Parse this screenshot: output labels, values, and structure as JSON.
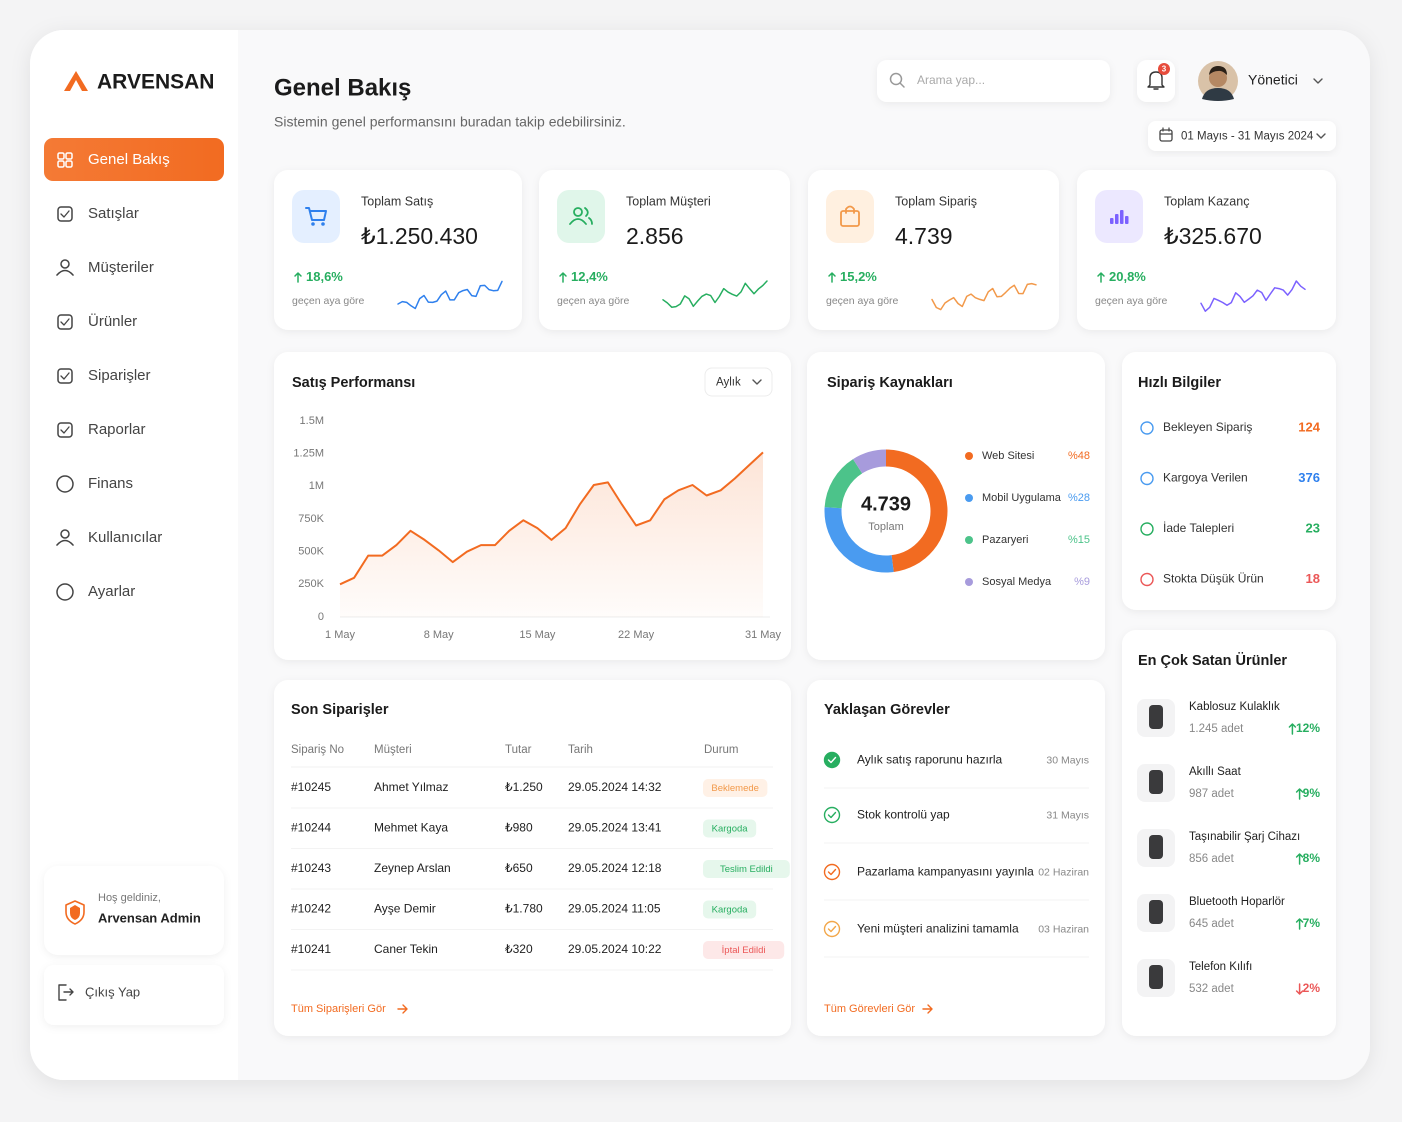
{
  "sidebar": {
    "brand": "ARVENSAN",
    "menu": [
      "Genel Bakış",
      "Satışlar",
      "Müşteriler",
      "Ürünler",
      "Siparişler",
      "Raporlar",
      "Finans",
      "Kullanıcılar",
      "Ayarlar"
    ],
    "welcome": "Hoş geldiniz,",
    "user": "Arvensan Admin",
    "logout": "Çıkış Yap"
  },
  "header": {
    "title": "Genel Bakış",
    "subtitle": "Sistemin genel performansını buradan takip edebilirsiniz.",
    "search": "Arama yap...",
    "notifications": 3,
    "user": "Yönetici",
    "date_range": "01 Mayıs - 31 Mayıs 2024"
  },
  "kpis": [
    {
      "label": "Toplam Satış",
      "value": "₺1.250.430",
      "change": "18,6%",
      "note": "geçen aya göre"
    },
    {
      "label": "Toplam Müşteri",
      "value": "2.856",
      "change": "12,4%",
      "note": "geçen aya göre"
    },
    {
      "label": "Toplam Sipariş",
      "value": "4.739",
      "change": "15,2%",
      "note": "geçen aya göre"
    },
    {
      "label": "Toplam Kazanç",
      "value": "₺325.670",
      "change": "20,8%",
      "note": "geçen aya göre"
    }
  ],
  "chart_data": [
    {
      "type": "line",
      "title": "Satış Performansı",
      "period": "Aylık",
      "color": "#f26b21",
      "grid": false,
      "x": [
        1,
        2,
        3,
        4,
        5,
        6,
        7,
        8,
        9,
        10,
        11,
        12,
        13,
        14,
        15,
        16,
        17,
        18,
        19,
        20,
        21,
        22,
        23,
        24,
        25,
        26,
        27,
        28,
        29,
        30,
        31
      ],
      "values": [
        250000,
        300000,
        470000,
        470000,
        550000,
        660000,
        590000,
        510000,
        420000,
        500000,
        550000,
        550000,
        660000,
        740000,
        680000,
        590000,
        680000,
        860000,
        1010000,
        1030000,
        860000,
        700000,
        740000,
        900000,
        970000,
        1010000,
        930000,
        970000,
        1060000,
        1160000,
        1260000
      ],
      "xlim": [
        1,
        31
      ],
      "xticks": [
        {
          "value": 1,
          "label": "1 May"
        },
        {
          "value": 8,
          "label": "8 May"
        },
        {
          "value": 15,
          "label": "15 May"
        },
        {
          "value": 22,
          "label": "22 May"
        },
        {
          "value": 31,
          "label": "31 May"
        }
      ],
      "ylim": [
        0,
        1500000
      ],
      "yticks": [
        {
          "value": 0,
          "label": "0"
        },
        {
          "value": 250000,
          "label": "250K"
        },
        {
          "value": 500000,
          "label": "500K"
        },
        {
          "value": 750000,
          "label": "750K"
        },
        {
          "value": 1000000,
          "label": "1M"
        },
        {
          "value": 1250000,
          "label": "1.25M"
        },
        {
          "value": 1500000,
          "label": "1.5M"
        }
      ]
    },
    {
      "type": "donut",
      "title": "Sipariş Kaynakları",
      "total": "4.739",
      "total_label": "Toplam",
      "categories": [
        "Web Sitesi",
        "Mobil Uygulama",
        "Pazaryeri",
        "Sosyal Medya"
      ],
      "values": [
        48,
        28,
        15,
        9
      ],
      "value_labels": [
        "%48",
        "%28",
        "%15",
        "%9"
      ],
      "colors": [
        "#f26b21",
        "#4a9bf0",
        "#4cc38a",
        "#a79bdc"
      ]
    }
  ],
  "quick_info": {
    "title": "Hızlı Bilgiler",
    "items": [
      {
        "label": "Bekleyen Sipariş",
        "value": 124
      },
      {
        "label": "Kargoya Verilen",
        "value": 376
      },
      {
        "label": "İade Talepleri",
        "value": 23
      },
      {
        "label": "Stokta Düşük Ürün",
        "value": 18
      }
    ]
  },
  "top_products": {
    "title": "En Çok Satan Ürünler",
    "items": [
      {
        "name": "Kablosuz Kulaklık",
        "quantity": "1.245 adet",
        "change": "12%",
        "direction": "up"
      },
      {
        "name": "Akıllı Saat",
        "quantity": "987 adet",
        "change": "9%",
        "direction": "up"
      },
      {
        "name": "Taşınabilir Şarj Cihazı",
        "quantity": "856 adet",
        "change": "8%",
        "direction": "up"
      },
      {
        "name": "Bluetooth Hoparlör",
        "quantity": "645 adet",
        "change": "7%",
        "direction": "up"
      },
      {
        "name": "Telefon Kılıfı",
        "quantity": "532 adet",
        "change": "2%",
        "direction": "down"
      }
    ]
  },
  "orders": {
    "title": "Son Siparişler",
    "columns": [
      "Sipariş No",
      "Müşteri",
      "Tutar",
      "Tarih",
      "Durum"
    ],
    "rows": [
      [
        "#10245",
        "Ahmet Yılmaz",
        "₺1.250",
        "29.05.2024 14:32",
        "Beklemede"
      ],
      [
        "#10244",
        "Mehmet Kaya",
        "₺980",
        "29.05.2024 13:41",
        "Kargoda"
      ],
      [
        "#10243",
        "Zeynep Arslan",
        "₺650",
        "29.05.2024 12:18",
        "Teslim Edildi"
      ],
      [
        "#10242",
        "Ayşe Demir",
        "₺1.780",
        "29.05.2024 11:05",
        "Kargoda"
      ],
      [
        "#10241",
        "Caner Tekin",
        "₺320",
        "29.05.2024 10:22",
        "İptal Edildi"
      ]
    ],
    "link": "Tüm Siparişleri Gör"
  },
  "tasks": {
    "title": "Yaklaşan Görevler",
    "items": [
      {
        "text": "Aylık satış raporunu hazırla",
        "date": "30 Mayıs"
      },
      {
        "text": "Stok kontrolü yap",
        "date": "31 Mayıs"
      },
      {
        "text": "Pazarlama kampanyasını yayınla",
        "date": "02 Haziran"
      },
      {
        "text": "Yeni müşteri analizini tamamla",
        "date": "03 Haziran"
      }
    ],
    "link": "Tüm Görevleri Gör"
  }
}
